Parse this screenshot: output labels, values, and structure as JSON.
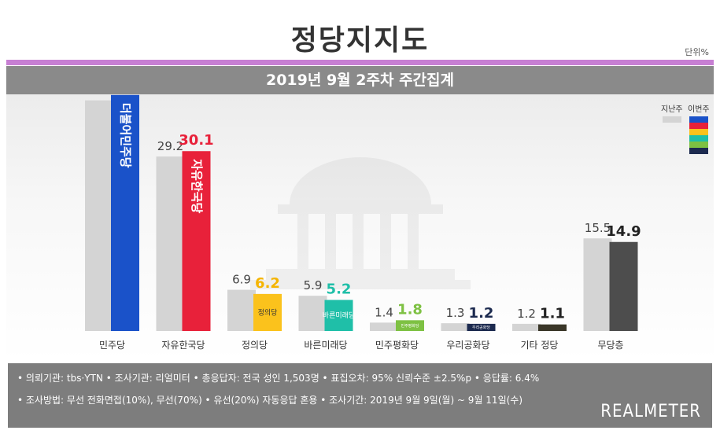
{
  "title": "정당지지도",
  "unit": "단위%",
  "subtitle": "2019년 9월 2주차 주간집계",
  "legend": {
    "prev": "지난주",
    "curr": "이번주"
  },
  "chart_data": {
    "type": "bar",
    "categories": [
      "민주당",
      "자유한국당",
      "정의당",
      "바른미래당",
      "민주평화당",
      "우리공화당",
      "기타 정당",
      "무당층"
    ],
    "series": [
      {
        "name": "지난주",
        "values": [
          38.6,
          29.2,
          6.9,
          5.9,
          1.4,
          1.3,
          1.2,
          15.5
        ]
      },
      {
        "name": "이번주",
        "values": [
          39.5,
          30.1,
          6.2,
          5.2,
          1.8,
          1.2,
          1.1,
          14.9
        ]
      }
    ],
    "prev_color": "#d4d4d4",
    "curr_colors": [
      "#1a52c9",
      "#e8213a",
      "#fbc21c",
      "#1fbfa8",
      "#7ec143",
      "#1c2a4f",
      "#3a3628",
      "#4d4d4d"
    ],
    "curr_label_colors": [
      "#1a3d8a",
      "#e8213a",
      "#f5b400",
      "#1fbfa8",
      "#7ec143",
      "#1c2a4f",
      "#222222",
      "#222222"
    ],
    "bar_party_labels": [
      "더불어민주당",
      "자유한국당",
      "정의당",
      "바른미래당",
      "민주평화당",
      "우리공화당",
      "",
      ""
    ],
    "ylim": [
      0,
      45
    ]
  },
  "footer": {
    "line1": "• 의뢰기관: tbs·YTN • 조사기관: 리얼미터 • 총응답자: 전국 성인 1,503명 • 표집오차: 95% 신뢰수준 ±2.5%p • 응답률: 6.4%",
    "line2": "• 조사방법: 무선 전화면접(10%), 무선(70%) • 유선(20%) 자동응답 혼용 • 조사기간: 2019년 9월 9일(월) ~ 9월 11일(수)",
    "brand": "REALMETER"
  }
}
